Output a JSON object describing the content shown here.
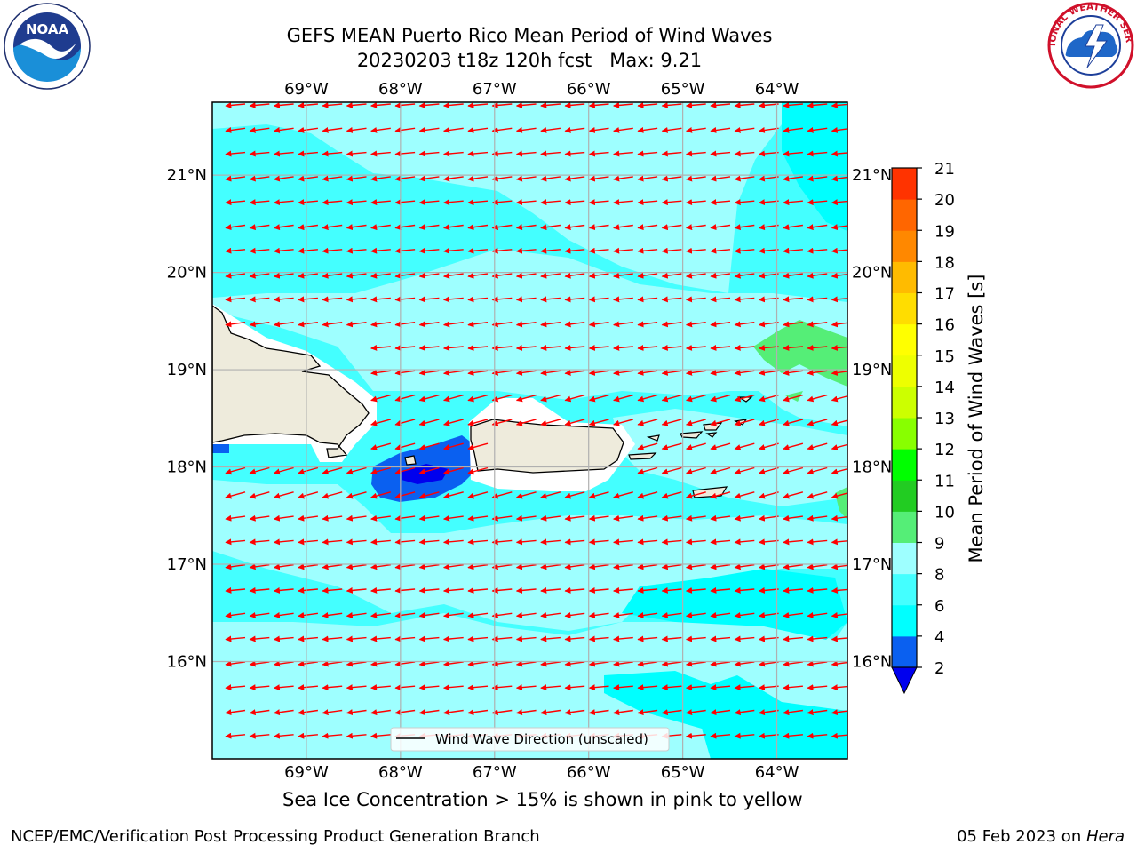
{
  "title": {
    "line1": "GEFS MEAN Puerto Rico Mean Period of Wind Waves",
    "line2": "20230203 t18z 120h fcst   Max: 9.21"
  },
  "logos": {
    "left": {
      "name": "NOAA",
      "ring_text": "NATIONAL OCEANIC AND ATMOSPHERIC ADMINISTRATION • U.S. DEPARTMENT OF COMMERCE"
    },
    "right": {
      "name": "NATIONAL WEATHER SERVICE"
    }
  },
  "map": {
    "lon_labels": [
      "69°W",
      "68°W",
      "67°W",
      "66°W",
      "65°W",
      "64°W"
    ],
    "lat_labels": [
      "21°N",
      "20°N",
      "19°N",
      "18°N",
      "17°N",
      "16°N"
    ],
    "lon_values": [
      -69,
      -68,
      -67,
      -66,
      -65,
      -64
    ],
    "lat_values": [
      21,
      20,
      19,
      18,
      17,
      16
    ],
    "extent": {
      "lon_min": -70,
      "lon_max": -63.25,
      "lat_min": 15,
      "lat_max": 21.75
    },
    "arrow_color": "#ff0000",
    "land_color": "#eeebdc",
    "legend_label": "Wind Wave Direction (unscaled)"
  },
  "colorbar": {
    "label": "Mean Period of Wind Waves [s]",
    "ticks": [
      "2",
      "4",
      "6",
      "8",
      "9",
      "10",
      "11",
      "12",
      "13",
      "14",
      "15",
      "16",
      "17",
      "18",
      "19",
      "20",
      "21"
    ],
    "colors": [
      "#0a60f0",
      "#00ffff",
      "#44ffff",
      "#9effff",
      "#55ee77",
      "#22cc22",
      "#00ff00",
      "#88ff00",
      "#ccff00",
      "#eeff00",
      "#ffff00",
      "#ffdd00",
      "#ffbb00",
      "#ff8800",
      "#ff6600",
      "#ff3300"
    ],
    "extend_color": "#0000ee"
  },
  "subtitle": "Sea Ice Concentration > 15% is shown in pink to yellow",
  "footer": {
    "left": "NCEP/EMC/Verification Post Processing Product Generation Branch",
    "date": "05 Feb 2023 on ",
    "host": "Hera"
  }
}
